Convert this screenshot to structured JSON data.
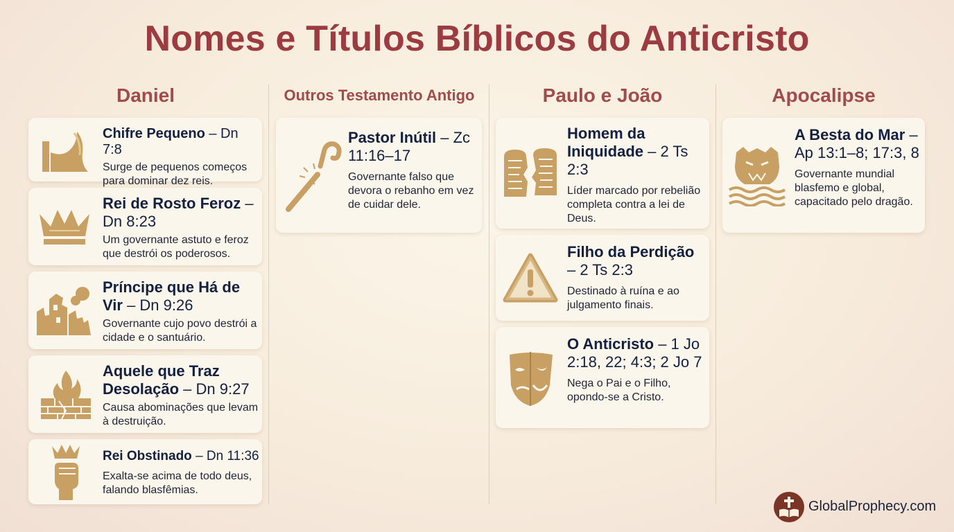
{
  "title": "Nomes e Títulos Bíblicos do Anticristo",
  "columns": [
    {
      "header": "Daniel"
    },
    {
      "header": "Outros Testamento Antigo"
    },
    {
      "header": "Paulo e João"
    },
    {
      "header": "Apocalipse"
    }
  ],
  "daniel": [
    {
      "name": "Chifre Pequeno",
      "ref": " – Dn 7:8",
      "desc": "Surge de pequenos começos para dominar dez reis.",
      "icon": "horn-icon"
    },
    {
      "name": "Rei de Rosto Feroz",
      "ref": " – Dn 8:23",
      "desc": "Um governante astuto e feroz que destrói os poderosos.",
      "icon": "crown-icon"
    },
    {
      "name": "Príncipe que Há de Vir",
      "ref": " – Dn 9:26",
      "desc": "Governante cujo povo destrói a cidade e o santuário.",
      "icon": "ruined-city-icon"
    },
    {
      "name": "Aquele que Traz Desolação",
      "ref": " – Dn 9:27",
      "desc": "Causa abominações que levam à destruição.",
      "icon": "burning-wall-icon"
    },
    {
      "name": "Rei Obstinado",
      "ref": " – Dn 11:36",
      "desc": "Exalta-se acima de todo deus, falando blasfêmias.",
      "icon": "crowned-fist-icon"
    }
  ],
  "old_testament": [
    {
      "name": "Pastor Inútil",
      "ref": " – Zc 11:16–17",
      "desc": "Governante falso que devora o rebanho em vez de cuidar dele.",
      "icon": "broken-staff-icon"
    }
  ],
  "paul_john": [
    {
      "name": "Homem da Iniquidade",
      "ref": " – 2 Ts 2:3",
      "desc": "Líder marcado por rebelião completa contra a lei de Deus.",
      "icon": "broken-tablets-icon"
    },
    {
      "name": "Filho da Perdição",
      "ref": " – 2 Ts 2:3",
      "desc": "Destinado à ruína e ao julgamento finais.",
      "icon": "warning-icon"
    },
    {
      "name": "O Anticristo",
      "ref": " – 1 Jo 2:18, 22; 4:3; 2 Jo 7",
      "desc": "Nega o Pai e o Filho, opondo-se a Cristo.",
      "icon": "two-faced-mask-icon"
    }
  ],
  "revelation": [
    {
      "name": "A Besta do Mar",
      "ref": " – Ap 13:1–8; 17:3, 8",
      "desc": "Governante mundial blasfemo e global, capacitado pelo dragão.",
      "icon": "sea-beast-icon"
    }
  ],
  "footer": {
    "site": "GlobalProphecy.com",
    "logo_icon": "bible-cross-icon"
  },
  "colors": {
    "title": "#9c3b40",
    "header": "#a34a4b",
    "icon_gold": "#c9a063",
    "card": "#fbf6ec"
  }
}
